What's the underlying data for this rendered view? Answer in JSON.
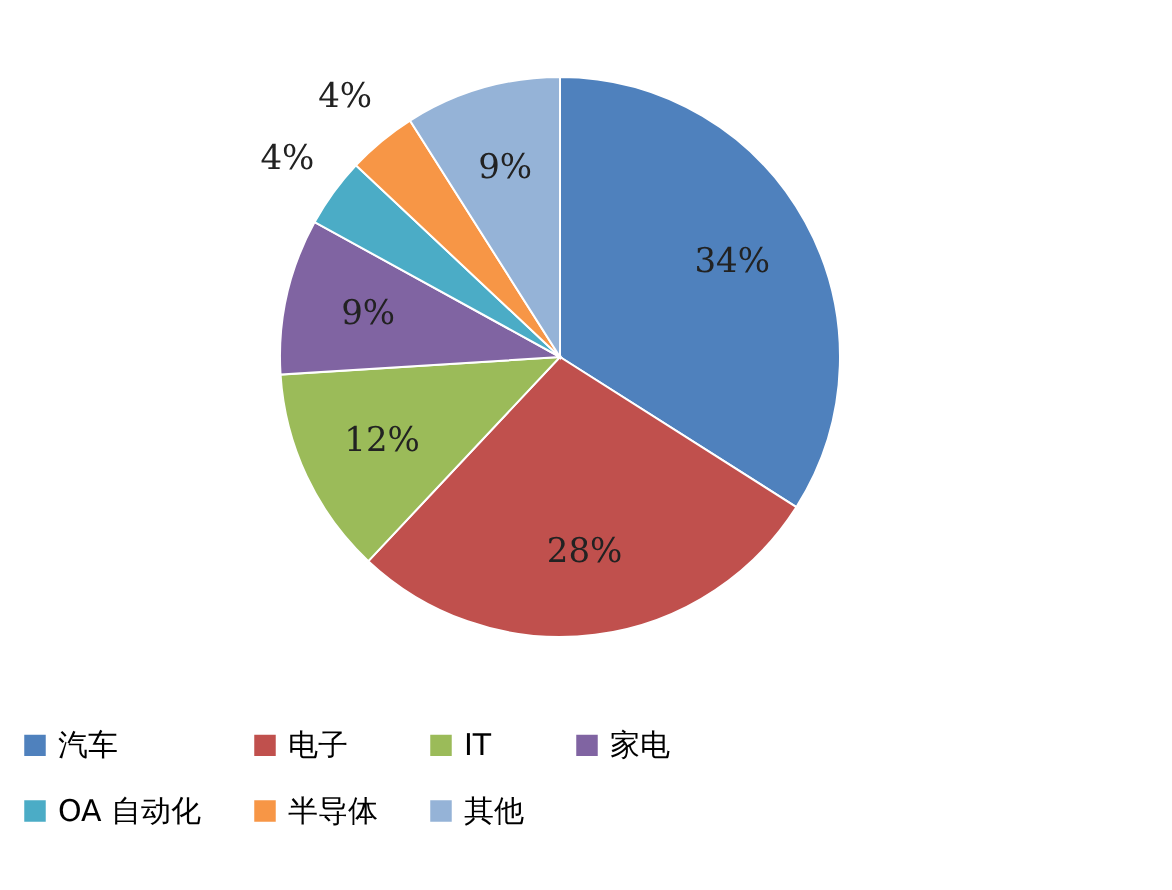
{
  "chart_data": {
    "type": "pie",
    "categories": [
      "汽车",
      "电子",
      "IT",
      "家电",
      "OA 自动化",
      "半导体",
      "其他"
    ],
    "values": [
      34,
      28,
      12,
      9,
      4,
      4,
      9
    ],
    "colors": [
      "#4f81bd",
      "#c0504d",
      "#9bbb59",
      "#8064a2",
      "#4bacc6",
      "#f79646",
      "#95b3d7"
    ],
    "value_labels": [
      "34%",
      "28%",
      "12%",
      "9%",
      "4%",
      "4%",
      "9%"
    ],
    "legend": "bottom"
  }
}
